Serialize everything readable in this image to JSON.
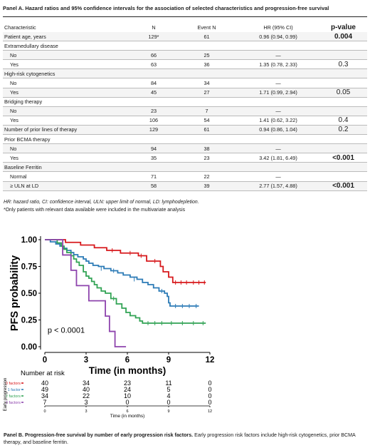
{
  "panel_a": {
    "title": "Panel A. Hazard ratios and 95% confidence intervals for the association of selected characteristics and progression-free survival",
    "headers": {
      "characteristic": "Characteristic",
      "n": "N",
      "event_n": "Event N",
      "hr": "HR (95% CI)",
      "pvalue": "p-value"
    },
    "rows": [
      {
        "label": "Patient age, years",
        "n": "129*",
        "event_n": "61",
        "hr": "0.96 (0.94, 0.99)",
        "p": "0.004",
        "p_bold": true,
        "indent": false
      },
      {
        "label": "Extramedullary disease",
        "n": "",
        "event_n": "",
        "hr": "",
        "p": "",
        "p_bold": false,
        "indent": false
      },
      {
        "label": "No",
        "n": "66",
        "event_n": "25",
        "hr": "—",
        "p": "",
        "p_bold": false,
        "indent": true
      },
      {
        "label": "Yes",
        "n": "63",
        "event_n": "36",
        "hr": "1.35 (0.78, 2.33)",
        "p": "0.3",
        "p_bold": false,
        "indent": true
      },
      {
        "label": "High-risk cytogenetics",
        "n": "",
        "event_n": "",
        "hr": "",
        "p": "",
        "p_bold": false,
        "indent": false
      },
      {
        "label": "No",
        "n": "84",
        "event_n": "34",
        "hr": "—",
        "p": "",
        "p_bold": false,
        "indent": true
      },
      {
        "label": "Yes",
        "n": "45",
        "event_n": "27",
        "hr": "1.71 (0.99, 2.94)",
        "p": "0.05",
        "p_bold": false,
        "indent": true
      },
      {
        "label": "Bridging therapy",
        "n": "",
        "event_n": "",
        "hr": "",
        "p": "",
        "p_bold": false,
        "indent": false
      },
      {
        "label": "No",
        "n": "23",
        "event_n": "7",
        "hr": "—",
        "p": "",
        "p_bold": false,
        "indent": true
      },
      {
        "label": "Yes",
        "n": "106",
        "event_n": "54",
        "hr": "1.41 (0.62, 3.22)",
        "p": "0.4",
        "p_bold": false,
        "indent": true
      },
      {
        "label": "Number of prior lines of therapy",
        "n": "129",
        "event_n": "61",
        "hr": "0.94 (0.86, 1.04)",
        "p": "0.2",
        "p_bold": false,
        "indent": false
      },
      {
        "label": "Prior BCMA therapy",
        "n": "",
        "event_n": "",
        "hr": "",
        "p": "",
        "p_bold": false,
        "indent": false
      },
      {
        "label": "No",
        "n": "94",
        "event_n": "38",
        "hr": "—",
        "p": "",
        "p_bold": false,
        "indent": true
      },
      {
        "label": "Yes",
        "n": "35",
        "event_n": "23",
        "hr": "3.42 (1.81, 6.49)",
        "p": "<0.001",
        "p_bold": true,
        "indent": true
      },
      {
        "label": "Baseline Ferritin",
        "n": "",
        "event_n": "",
        "hr": "",
        "p": "",
        "p_bold": false,
        "indent": false
      },
      {
        "label": "Normal",
        "n": "71",
        "event_n": "22",
        "hr": "—",
        "p": "",
        "p_bold": false,
        "indent": true
      },
      {
        "label": "≥ ULN at LD",
        "n": "58",
        "event_n": "39",
        "hr": "2.77 (1.57, 4.88)",
        "p": "<0.001",
        "p_bold": true,
        "indent": true
      }
    ],
    "footnote_1": "HR: hazard ratio, CI: confidence interval, ULN: upper limit of normal, LD: lymphodepletion.",
    "footnote_2": "*Only patients with relevant data available were included in the multivariate analysis"
  },
  "chart_data": {
    "type": "line",
    "subtype": "kaplan-meier",
    "xlabel": "Time (in months)",
    "ylabel": "PFS probability",
    "xlim": [
      0,
      12
    ],
    "ylim": [
      0,
      1
    ],
    "xticks": [
      "0",
      "3",
      "6",
      "9",
      "12"
    ],
    "yticks": [
      "0.00",
      "0.25",
      "0.50",
      "0.75",
      "1.00"
    ],
    "annotation": "p < 0.0001",
    "series": [
      {
        "name": "0 factors",
        "color": "#d7191c",
        "steps": [
          [
            0,
            1.0
          ],
          [
            1.5,
            0.975
          ],
          [
            2.6,
            0.95
          ],
          [
            3.6,
            0.925
          ],
          [
            4.5,
            0.9
          ],
          [
            5.5,
            0.875
          ],
          [
            6.8,
            0.85
          ],
          [
            7.4,
            0.8
          ],
          [
            8.4,
            0.75
          ],
          [
            8.6,
            0.7
          ],
          [
            9.0,
            0.65
          ],
          [
            9.3,
            0.6
          ],
          [
            11.7,
            0.6
          ]
        ],
        "censor": [
          [
            4.9,
            0.9
          ],
          [
            6.2,
            0.875
          ],
          [
            7.0,
            0.85
          ],
          [
            8.0,
            0.8
          ],
          [
            9.5,
            0.6
          ],
          [
            9.9,
            0.6
          ],
          [
            10.3,
            0.6
          ],
          [
            10.8,
            0.6
          ],
          [
            11.2,
            0.6
          ],
          [
            11.6,
            0.6
          ]
        ]
      },
      {
        "name": "1 factor",
        "color": "#2c7bb6",
        "steps": [
          [
            0,
            1.0
          ],
          [
            0.4,
            0.98
          ],
          [
            0.8,
            0.96
          ],
          [
            1.1,
            0.94
          ],
          [
            1.3,
            0.92
          ],
          [
            1.6,
            0.9
          ],
          [
            1.9,
            0.88
          ],
          [
            2.1,
            0.86
          ],
          [
            2.4,
            0.84
          ],
          [
            2.8,
            0.82
          ],
          [
            3.0,
            0.8
          ],
          [
            3.2,
            0.78
          ],
          [
            3.5,
            0.76
          ],
          [
            3.9,
            0.75
          ],
          [
            4.3,
            0.73
          ],
          [
            4.8,
            0.71
          ],
          [
            5.3,
            0.69
          ],
          [
            5.7,
            0.67
          ],
          [
            6.2,
            0.65
          ],
          [
            6.7,
            0.63
          ],
          [
            7.1,
            0.6
          ],
          [
            7.5,
            0.58
          ],
          [
            7.9,
            0.55
          ],
          [
            8.3,
            0.52
          ],
          [
            8.7,
            0.5
          ],
          [
            8.9,
            0.47
          ],
          [
            9.0,
            0.41
          ],
          [
            9.1,
            0.38
          ],
          [
            11.2,
            0.38
          ]
        ],
        "censor": [
          [
            4.1,
            0.73
          ],
          [
            5.0,
            0.71
          ],
          [
            6.5,
            0.63
          ],
          [
            8.5,
            0.52
          ],
          [
            9.5,
            0.38
          ],
          [
            10.0,
            0.38
          ],
          [
            10.5,
            0.38
          ],
          [
            11.0,
            0.38
          ]
        ]
      },
      {
        "name": "2 factors",
        "color": "#31a354",
        "steps": [
          [
            0,
            1.0
          ],
          [
            0.9,
            0.97
          ],
          [
            1.2,
            0.94
          ],
          [
            1.4,
            0.91
          ],
          [
            1.6,
            0.88
          ],
          [
            1.9,
            0.85
          ],
          [
            2.1,
            0.82
          ],
          [
            2.3,
            0.79
          ],
          [
            2.5,
            0.76
          ],
          [
            2.8,
            0.7
          ],
          [
            3.0,
            0.66
          ],
          [
            3.2,
            0.64
          ],
          [
            3.4,
            0.61
          ],
          [
            3.6,
            0.58
          ],
          [
            3.8,
            0.55
          ],
          [
            4.1,
            0.52
          ],
          [
            4.4,
            0.5
          ],
          [
            4.8,
            0.45
          ],
          [
            5.2,
            0.4
          ],
          [
            5.6,
            0.36
          ],
          [
            5.9,
            0.32
          ],
          [
            6.2,
            0.29
          ],
          [
            6.6,
            0.27
          ],
          [
            6.9,
            0.24
          ],
          [
            7.1,
            0.22
          ],
          [
            11.7,
            0.22
          ]
        ],
        "censor": [
          [
            5.0,
            0.45
          ],
          [
            7.5,
            0.22
          ],
          [
            8.0,
            0.22
          ],
          [
            8.5,
            0.22
          ],
          [
            9.2,
            0.22
          ],
          [
            10.0,
            0.22
          ],
          [
            10.8,
            0.22
          ],
          [
            11.5,
            0.22
          ]
        ]
      },
      {
        "name": "3 factors",
        "color": "#8e44ad",
        "steps": [
          [
            0,
            1.0
          ],
          [
            1.3,
            0.857
          ],
          [
            1.9,
            0.714
          ],
          [
            2.3,
            0.571
          ],
          [
            3.2,
            0.429
          ],
          [
            4.4,
            0.286
          ],
          [
            4.7,
            0.143
          ],
          [
            5.1,
            0.0
          ],
          [
            5.9,
            0.0
          ]
        ],
        "censor": []
      }
    ],
    "risk_table": {
      "title": "Number at risk",
      "side_label": "Early progression",
      "time_points": [
        "0",
        "3",
        "6",
        "9",
        "12"
      ],
      "xlabel": "Time (in months)",
      "rows": [
        {
          "label": "0 factors",
          "color": "#d7191c",
          "values": [
            "40",
            "34",
            "23",
            "11",
            "0"
          ]
        },
        {
          "label": "1 factor",
          "color": "#2c7bb6",
          "values": [
            "49",
            "40",
            "24",
            "5",
            "0"
          ]
        },
        {
          "label": "2 factors",
          "color": "#31a354",
          "values": [
            "34",
            "22",
            "10",
            "4",
            "0"
          ]
        },
        {
          "label": "3 factors",
          "color": "#8e44ad",
          "values": [
            "7",
            "3",
            "0",
            "0",
            "0"
          ]
        }
      ]
    }
  },
  "panel_b": {
    "title": "Panel B. Progression-free survival by number of early progression risk factors.",
    "caption": "Early progression risk factors include high-risk cytogenetics, prior BCMA therapy, and baseline ferritin."
  }
}
